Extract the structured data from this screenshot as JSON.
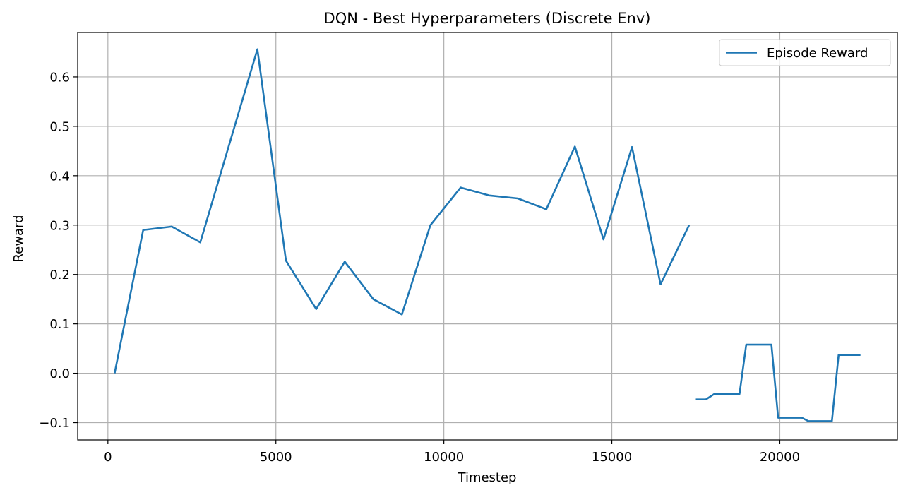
{
  "chart_data": {
    "type": "line",
    "title": "DQN - Best Hyperparameters (Discrete Env)",
    "xlabel": "Timestep",
    "ylabel": "Reward",
    "xlim": [
      -900,
      23500
    ],
    "ylim": [
      -0.135,
      0.69
    ],
    "xticks": [
      0,
      5000,
      10000,
      15000,
      20000
    ],
    "yticks": [
      -0.1,
      0.0,
      0.1,
      0.2,
      0.3,
      0.4,
      0.5,
      0.6
    ],
    "xtick_labels": [
      "0",
      "5000",
      "10000",
      "15000",
      "20000"
    ],
    "ytick_labels": [
      "−0.1",
      "0.0",
      "0.1",
      "0.2",
      "0.3",
      "0.4",
      "0.5",
      "0.6"
    ],
    "grid": true,
    "legend_position": "top-right",
    "line_color": "#1f77b4",
    "series": [
      {
        "name": "Episode Reward",
        "segments": [
          [
            [
              200,
              0.0
            ],
            [
              1050,
              0.29
            ],
            [
              1900,
              0.297
            ],
            [
              2750,
              0.265
            ],
            [
              4450,
              0.656
            ],
            [
              5300,
              0.228
            ],
            [
              6200,
              0.13
            ],
            [
              7050,
              0.226
            ],
            [
              7900,
              0.15
            ],
            [
              8750,
              0.119
            ],
            [
              9600,
              0.3
            ],
            [
              10500,
              0.376
            ],
            [
              11350,
              0.36
            ],
            [
              12200,
              0.354
            ],
            [
              13050,
              0.332
            ],
            [
              13900,
              0.459
            ],
            [
              14750,
              0.271
            ],
            [
              15600,
              0.458
            ],
            [
              16450,
              0.18
            ],
            [
              17300,
              0.3
            ]
          ],
          [
            [
              17500,
              -0.053
            ],
            [
              17800,
              -0.053
            ],
            [
              18050,
              -0.042
            ],
            [
              18800,
              -0.042
            ],
            [
              19000,
              0.058
            ],
            [
              19750,
              0.058
            ],
            [
              19950,
              -0.09
            ],
            [
              20650,
              -0.09
            ],
            [
              20850,
              -0.097
            ],
            [
              21550,
              -0.097
            ],
            [
              21750,
              0.037
            ],
            [
              22400,
              0.037
            ]
          ]
        ]
      }
    ]
  }
}
